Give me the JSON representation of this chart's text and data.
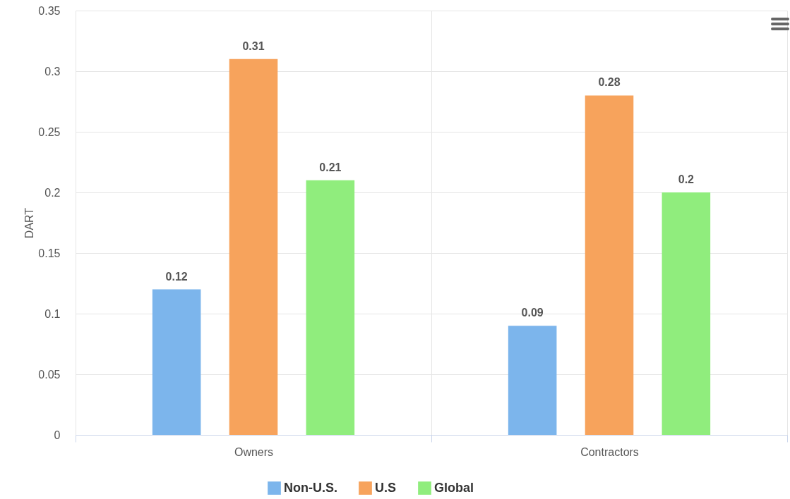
{
  "chart_data": {
    "type": "bar",
    "ylabel": "DART",
    "categories": [
      "Owners",
      "Contractors"
    ],
    "series": [
      {
        "name": "Non-U.S.",
        "color": "#7cb5ec",
        "values": [
          0.12,
          0.09
        ]
      },
      {
        "name": "U.S",
        "color": "#f7a35c",
        "values": [
          0.31,
          0.28
        ]
      },
      {
        "name": "Global",
        "color": "#90ed7d",
        "values": [
          0.21,
          0.2
        ]
      }
    ],
    "ylim": [
      0,
      0.35
    ],
    "yticks": [
      0,
      0.05,
      0.1,
      0.15,
      0.2,
      0.25,
      0.3,
      0.35
    ],
    "grid": true,
    "legend": "bottom",
    "data_labels": true
  }
}
